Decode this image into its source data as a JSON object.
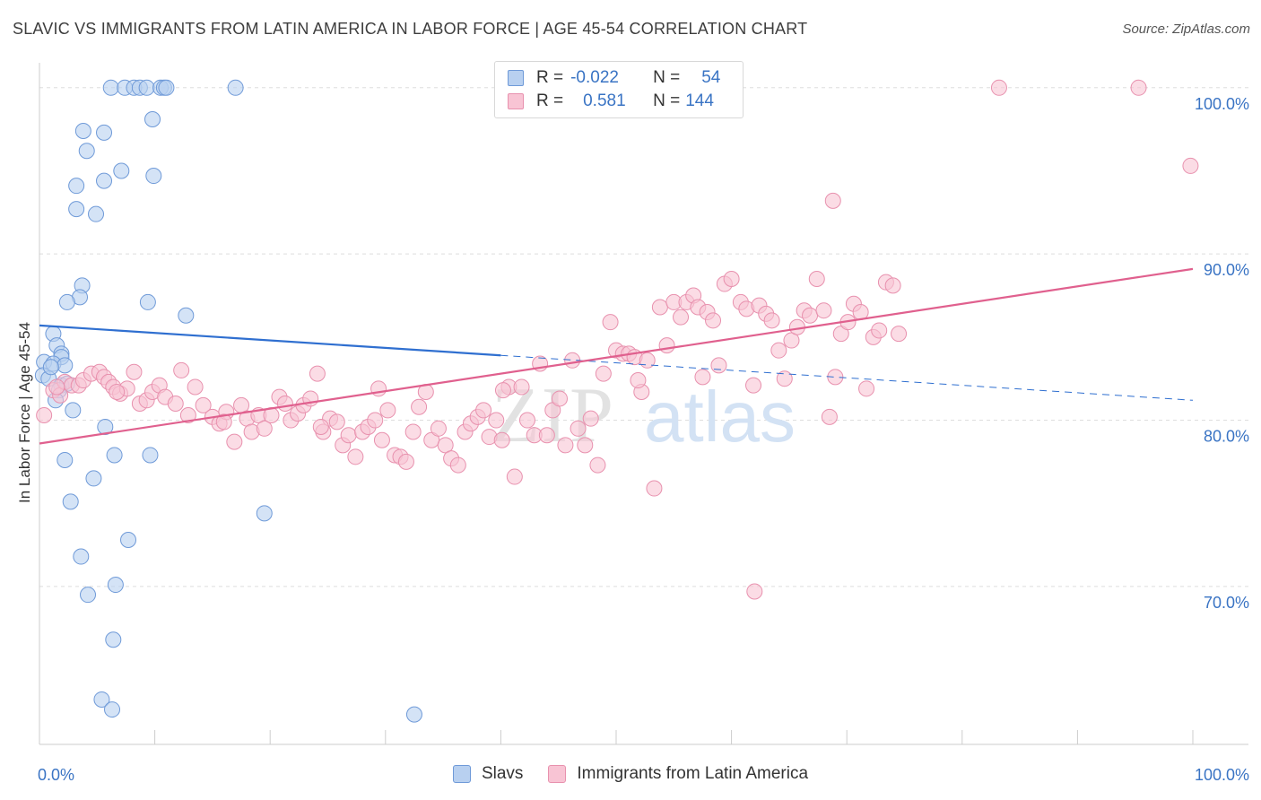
{
  "title": "SLAVIC VS IMMIGRANTS FROM LATIN AMERICA IN LABOR FORCE | AGE 45-54 CORRELATION CHART",
  "source": "Source: ZipAtlas.com",
  "watermark": {
    "zip": "ZIP",
    "atlas": "atlas"
  },
  "legend": {
    "rows": [
      {
        "r_label": "R =",
        "r_value": "-0.022",
        "n_label": "N =",
        "n_value": "54"
      },
      {
        "r_label": "R =",
        "r_value": "0.581",
        "n_label": "N =",
        "n_value": "144"
      }
    ]
  },
  "bottom_legend": [
    "Slavs",
    "Immigrants from Latin America"
  ],
  "colors": {
    "slavs_fill": "#b8d0f0",
    "slavs_stroke": "#6f9ad8",
    "slavs_line": "#2f6fd0",
    "latam_fill": "#f8c4d4",
    "latam_stroke": "#e891ae",
    "latam_line": "#e0608e",
    "axis_text": "#3a74c4",
    "grid": "#dddddd"
  },
  "chart_data": {
    "type": "scatter",
    "title": "SLAVIC VS IMMIGRANTS FROM LATIN AMERICA IN LABOR FORCE | AGE 45-54 CORRELATION CHART",
    "xlabel": "",
    "ylabel": "In Labor Force | Age 45-54",
    "xlim": [
      0,
      100
    ],
    "ylim": [
      60.5,
      101.5
    ],
    "x_tick_labels": [
      "0.0%",
      "100.0%"
    ],
    "y_ticks": [
      70,
      80,
      90,
      100
    ],
    "y_tick_labels": [
      "70.0%",
      "80.0%",
      "90.0%",
      "100.0%"
    ],
    "series": [
      {
        "name": "Slavs",
        "R": -0.022,
        "N": 54,
        "trend": {
          "x": [
            0,
            40
          ],
          "y": [
            85.7,
            83.9
          ],
          "dashed_to": [
            100,
            81.2
          ]
        },
        "points": [
          [
            6.2,
            100
          ],
          [
            7.4,
            100
          ],
          [
            8.2,
            100
          ],
          [
            8.7,
            100
          ],
          [
            9.3,
            100
          ],
          [
            10.5,
            100
          ],
          [
            10.8,
            100
          ],
          [
            11.0,
            100
          ],
          [
            17.0,
            100
          ],
          [
            5.6,
            97.3
          ],
          [
            3.8,
            97.4
          ],
          [
            4.1,
            96.2
          ],
          [
            9.8,
            98.1
          ],
          [
            7.1,
            95.0
          ],
          [
            5.6,
            94.4
          ],
          [
            3.2,
            94.1
          ],
          [
            9.9,
            94.7
          ],
          [
            3.2,
            92.7
          ],
          [
            4.9,
            92.4
          ],
          [
            3.7,
            88.1
          ],
          [
            3.5,
            87.4
          ],
          [
            2.4,
            87.1
          ],
          [
            9.4,
            87.1
          ],
          [
            12.7,
            86.3
          ],
          [
            1.2,
            85.2
          ],
          [
            1.5,
            84.5
          ],
          [
            1.9,
            84.0
          ],
          [
            1.9,
            83.8
          ],
          [
            0.4,
            83.5
          ],
          [
            1.2,
            83.4
          ],
          [
            2.2,
            83.3
          ],
          [
            0.3,
            82.7
          ],
          [
            0.8,
            82.5
          ],
          [
            1.9,
            82.1
          ],
          [
            2.4,
            82.2
          ],
          [
            1.7,
            81.8
          ],
          [
            1.4,
            81.2
          ],
          [
            2.9,
            80.6
          ],
          [
            5.7,
            79.6
          ],
          [
            2.2,
            77.6
          ],
          [
            6.5,
            77.9
          ],
          [
            9.6,
            77.9
          ],
          [
            4.7,
            76.5
          ],
          [
            2.7,
            75.1
          ],
          [
            19.5,
            74.4
          ],
          [
            7.7,
            72.8
          ],
          [
            3.6,
            71.8
          ],
          [
            6.6,
            70.1
          ],
          [
            4.2,
            69.5
          ],
          [
            6.4,
            66.8
          ],
          [
            5.4,
            63.2
          ],
          [
            6.3,
            62.6
          ],
          [
            32.5,
            62.3
          ],
          [
            1.0,
            83.2
          ]
        ]
      },
      {
        "name": "Immigrants from Latin America",
        "R": 0.581,
        "N": 144,
        "trend": {
          "x": [
            0,
            100
          ],
          "y": [
            78.6,
            89.1
          ]
        },
        "points": [
          [
            0.4,
            80.3
          ],
          [
            1.2,
            81.8
          ],
          [
            1.8,
            81.5
          ],
          [
            2.2,
            82.3
          ],
          [
            2.8,
            82.1
          ],
          [
            3.4,
            82.1
          ],
          [
            3.8,
            82.4
          ],
          [
            4.5,
            82.8
          ],
          [
            5.2,
            82.9
          ],
          [
            5.6,
            82.6
          ],
          [
            6.0,
            82.3
          ],
          [
            6.4,
            82.0
          ],
          [
            7.0,
            81.6
          ],
          [
            7.6,
            81.9
          ],
          [
            8.2,
            82.9
          ],
          [
            8.7,
            81.0
          ],
          [
            9.3,
            81.2
          ],
          [
            9.8,
            81.7
          ],
          [
            10.4,
            82.1
          ],
          [
            10.9,
            81.4
          ],
          [
            11.8,
            81.0
          ],
          [
            12.3,
            83.0
          ],
          [
            12.9,
            80.3
          ],
          [
            13.5,
            82.0
          ],
          [
            14.2,
            80.9
          ],
          [
            15.0,
            80.2
          ],
          [
            15.6,
            79.8
          ],
          [
            16.2,
            80.5
          ],
          [
            16.9,
            78.7
          ],
          [
            17.5,
            80.9
          ],
          [
            18.0,
            80.1
          ],
          [
            18.4,
            79.3
          ],
          [
            19.0,
            80.3
          ],
          [
            19.5,
            79.5
          ],
          [
            20.1,
            80.3
          ],
          [
            20.8,
            81.4
          ],
          [
            21.3,
            81.0
          ],
          [
            21.8,
            80.0
          ],
          [
            22.4,
            80.4
          ],
          [
            22.9,
            80.9
          ],
          [
            23.5,
            81.3
          ],
          [
            24.1,
            82.8
          ],
          [
            24.6,
            79.3
          ],
          [
            25.2,
            80.1
          ],
          [
            25.8,
            79.9
          ],
          [
            26.3,
            78.5
          ],
          [
            26.8,
            79.1
          ],
          [
            27.4,
            77.8
          ],
          [
            28.0,
            79.3
          ],
          [
            28.5,
            79.6
          ],
          [
            29.1,
            80.0
          ],
          [
            29.7,
            78.8
          ],
          [
            30.2,
            80.6
          ],
          [
            30.8,
            77.9
          ],
          [
            31.3,
            77.8
          ],
          [
            31.8,
            77.5
          ],
          [
            32.4,
            79.3
          ],
          [
            32.9,
            80.8
          ],
          [
            33.5,
            81.7
          ],
          [
            34.0,
            78.8
          ],
          [
            34.6,
            79.5
          ],
          [
            35.2,
            78.5
          ],
          [
            35.7,
            77.7
          ],
          [
            36.3,
            77.3
          ],
          [
            36.9,
            79.3
          ],
          [
            37.4,
            79.8
          ],
          [
            38.0,
            80.2
          ],
          [
            38.5,
            80.6
          ],
          [
            39.0,
            79.0
          ],
          [
            39.6,
            80.0
          ],
          [
            40.1,
            78.8
          ],
          [
            40.7,
            82.0
          ],
          [
            41.2,
            76.6
          ],
          [
            41.8,
            82.0
          ],
          [
            42.3,
            80.0
          ],
          [
            42.9,
            79.1
          ],
          [
            43.4,
            83.4
          ],
          [
            44.0,
            79.1
          ],
          [
            44.5,
            80.6
          ],
          [
            45.1,
            81.3
          ],
          [
            45.6,
            78.5
          ],
          [
            46.2,
            83.6
          ],
          [
            46.7,
            79.5
          ],
          [
            47.3,
            78.5
          ],
          [
            47.8,
            80.1
          ],
          [
            48.4,
            77.3
          ],
          [
            48.9,
            82.8
          ],
          [
            49.5,
            85.9
          ],
          [
            50.0,
            84.2
          ],
          [
            50.6,
            84.0
          ],
          [
            51.1,
            84.0
          ],
          [
            51.6,
            83.8
          ],
          [
            52.2,
            81.7
          ],
          [
            52.7,
            83.6
          ],
          [
            53.3,
            75.9
          ],
          [
            53.8,
            86.8
          ],
          [
            54.4,
            84.5
          ],
          [
            55.0,
            87.1
          ],
          [
            55.6,
            86.2
          ],
          [
            56.1,
            87.1
          ],
          [
            56.7,
            87.5
          ],
          [
            57.1,
            86.8
          ],
          [
            57.5,
            82.6
          ],
          [
            57.9,
            86.5
          ],
          [
            58.4,
            86.0
          ],
          [
            58.9,
            83.3
          ],
          [
            59.4,
            88.2
          ],
          [
            60.0,
            88.5
          ],
          [
            60.8,
            87.1
          ],
          [
            61.3,
            86.7
          ],
          [
            61.9,
            82.1
          ],
          [
            62.4,
            86.9
          ],
          [
            63.0,
            86.4
          ],
          [
            63.5,
            86.0
          ],
          [
            64.1,
            84.2
          ],
          [
            64.6,
            82.5
          ],
          [
            65.2,
            84.8
          ],
          [
            65.7,
            85.6
          ],
          [
            66.3,
            86.6
          ],
          [
            66.8,
            86.3
          ],
          [
            67.4,
            88.5
          ],
          [
            68.0,
            86.6
          ],
          [
            68.5,
            80.2
          ],
          [
            69.0,
            82.6
          ],
          [
            69.5,
            85.2
          ],
          [
            70.1,
            85.9
          ],
          [
            70.6,
            87.0
          ],
          [
            71.2,
            86.5
          ],
          [
            71.7,
            81.9
          ],
          [
            72.3,
            85.0
          ],
          [
            72.8,
            85.4
          ],
          [
            73.4,
            88.3
          ],
          [
            74.0,
            88.1
          ],
          [
            74.5,
            85.2
          ],
          [
            62.0,
            69.7
          ],
          [
            68.8,
            93.2
          ],
          [
            83.2,
            100
          ],
          [
            95.3,
            100
          ],
          [
            99.8,
            95.3
          ],
          [
            40.2,
            81.8
          ],
          [
            24.4,
            79.6
          ],
          [
            16.0,
            79.9
          ],
          [
            6.7,
            81.7
          ],
          [
            1.5,
            82.0
          ],
          [
            29.4,
            81.9
          ],
          [
            51.9,
            82.4
          ]
        ]
      }
    ]
  }
}
